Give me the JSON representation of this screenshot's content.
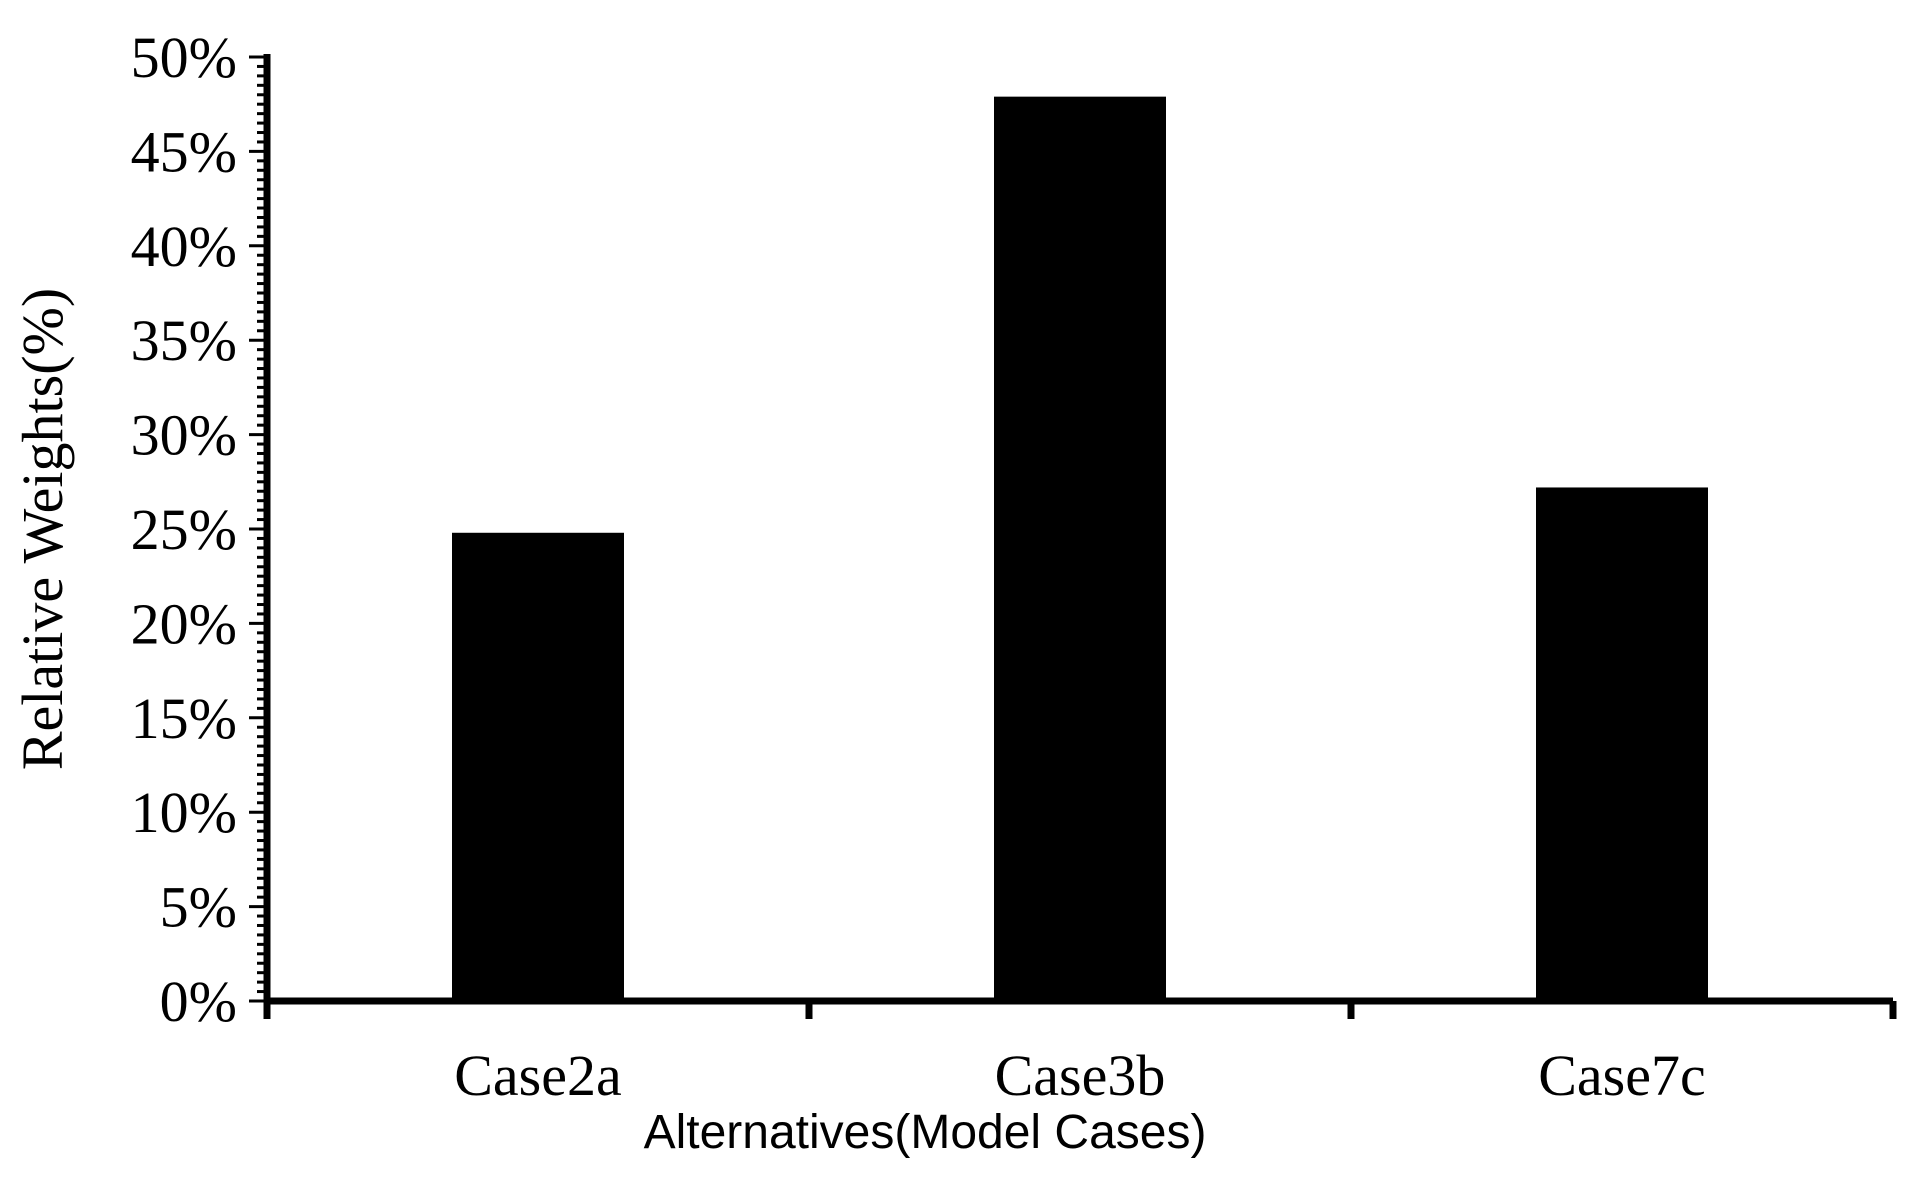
{
  "chart_data": {
    "type": "bar",
    "categories": [
      "Case2a",
      "Case3b",
      "Case7c"
    ],
    "values": [
      24.8,
      47.9,
      27.2
    ],
    "xlabel": "Alternatives(Model Cases)",
    "ylabel": "Relative Weights(%)",
    "ylim": [
      0,
      50
    ],
    "yticks": [
      "0%",
      "5%",
      "10%",
      "15%",
      "20%",
      "25%",
      "30%",
      "35%",
      "40%",
      "45%",
      "50%"
    ],
    "bar_color": "#000000",
    "grid": false,
    "legend": "none"
  }
}
